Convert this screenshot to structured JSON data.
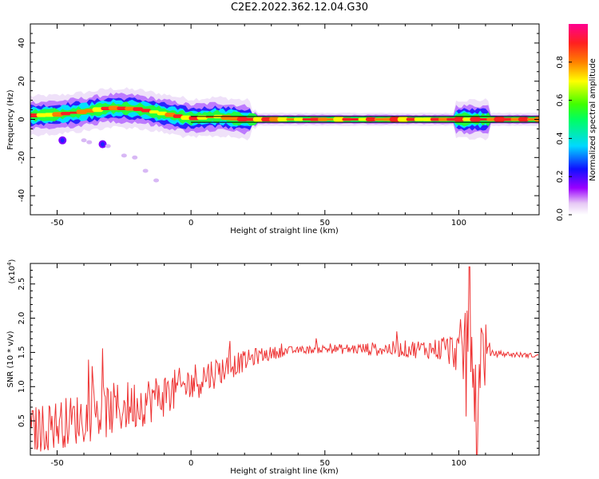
{
  "title": "C2E2.2022.362.12.04.G30",
  "chart_data": [
    {
      "type": "heatmap",
      "xlabel": "Height of straight line (km)",
      "ylabel": "Frequency (Hz)",
      "xlim": [
        -60,
        130
      ],
      "ylim": [
        -50,
        50
      ],
      "xticks": [
        -50,
        0,
        50,
        100
      ],
      "yticks": [
        -40,
        -20,
        0,
        20,
        40
      ],
      "colorbar": {
        "label": "Normalized spectral amplitude",
        "ticks": [
          "0.0",
          "0.2",
          "0.4",
          "0.6",
          "0.8"
        ],
        "range": [
          0,
          1
        ]
      },
      "ridge": {
        "x": [
          -60,
          -50,
          -40,
          -30,
          -20,
          -10,
          0,
          10,
          20,
          130
        ],
        "y": [
          2,
          2.5,
          4,
          6,
          5.5,
          3,
          0.5,
          1.5,
          0,
          0
        ]
      },
      "scatter_blobs": [
        {
          "x": -48,
          "y": -11
        },
        {
          "x": -40,
          "y": -11
        },
        {
          "x": -38,
          "y": -12
        },
        {
          "x": -33,
          "y": -13
        },
        {
          "x": -31,
          "y": -14
        },
        {
          "x": -25,
          "y": -19
        },
        {
          "x": -21,
          "y": -20
        },
        {
          "x": -17,
          "y": -27
        },
        {
          "x": -13,
          "y": -32
        }
      ]
    },
    {
      "type": "line",
      "xlabel": "Height of straight line (km)",
      "ylabel": "SNR (10 * v/v)",
      "y_exponent": "(x10",
      "y_exponent_power": "4",
      "xlim": [
        -60,
        130
      ],
      "ylim": [
        0.0,
        2.8
      ],
      "xticks": [
        -50,
        0,
        50,
        100
      ],
      "yticks": [
        0.5,
        1.0,
        1.5,
        2.0,
        2.5
      ],
      "ytick_labels": [
        "0.5",
        "1.0",
        "1.5",
        "2.0",
        "2.5"
      ],
      "color": "#ee3333",
      "trend": {
        "x": [
          -60,
          -40,
          -20,
          -5,
          5,
          15,
          25,
          35,
          50,
          70,
          95,
          100,
          115,
          130
        ],
        "y": [
          0.35,
          0.55,
          0.75,
          0.95,
          1.15,
          1.3,
          1.45,
          1.52,
          1.55,
          1.55,
          1.55,
          1.5,
          1.48,
          1.45
        ]
      },
      "noise_amplitude": {
        "x": [
          -60,
          -30,
          0,
          20,
          40,
          60,
          90,
          100,
          103,
          106,
          110,
          112,
          130
        ],
        "y": [
          0.35,
          0.4,
          0.3,
          0.15,
          0.05,
          0.08,
          0.15,
          0.3,
          1.2,
          1.0,
          0.5,
          0.05,
          0.03
        ]
      }
    }
  ]
}
